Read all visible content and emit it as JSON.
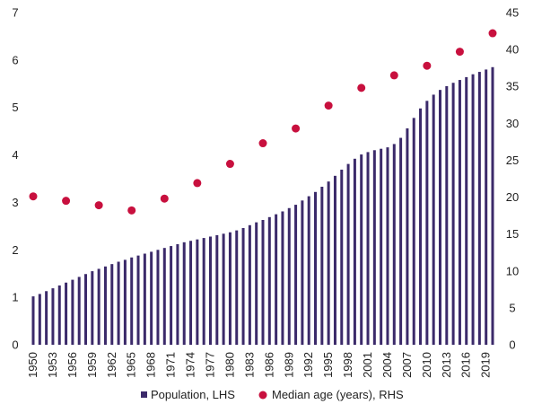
{
  "chart_data": {
    "type": "bar",
    "title": "",
    "xlabel": "",
    "ylabel": "",
    "y2label": "",
    "grid": false,
    "legend_position": "bottom",
    "colors": {
      "population": "#3b2a6a",
      "median_age": "#c8103e"
    },
    "x": [
      1950,
      1951,
      1952,
      1953,
      1954,
      1955,
      1956,
      1957,
      1958,
      1959,
      1960,
      1961,
      1962,
      1963,
      1964,
      1965,
      1966,
      1967,
      1968,
      1969,
      1970,
      1971,
      1972,
      1973,
      1974,
      1975,
      1976,
      1977,
      1978,
      1979,
      1980,
      1981,
      1982,
      1983,
      1984,
      1985,
      1986,
      1987,
      1988,
      1989,
      1990,
      1991,
      1992,
      1993,
      1994,
      1995,
      1996,
      1997,
      1998,
      1999,
      2000,
      2001,
      2002,
      2003,
      2004,
      2005,
      2006,
      2007,
      2008,
      2009,
      2010,
      2011,
      2012,
      2013,
      2014,
      2015,
      2016,
      2017,
      2018,
      2019,
      2020
    ],
    "x_tick_labels": [
      "1950",
      "1953",
      "1956",
      "1959",
      "1962",
      "1965",
      "1968",
      "1971",
      "1974",
      "1977",
      "1980",
      "1983",
      "1986",
      "1989",
      "1992",
      "1995",
      "1998",
      "2001",
      "2004",
      "2007",
      "2010",
      "2013",
      "2016",
      "2019"
    ],
    "y_ticks_left": [
      "0",
      "1",
      "2",
      "3",
      "4",
      "5",
      "6",
      "7"
    ],
    "y_ticks_right": [
      "0",
      "5",
      "10",
      "15",
      "20",
      "25",
      "30",
      "35",
      "40",
      "45"
    ],
    "ylim_left": [
      0,
      7
    ],
    "ylim_right": [
      0,
      45
    ],
    "series": [
      {
        "name": "Population, LHS",
        "type": "bar",
        "axis": "left",
        "values": [
          1.02,
          1.07,
          1.13,
          1.19,
          1.25,
          1.31,
          1.37,
          1.43,
          1.49,
          1.55,
          1.6,
          1.65,
          1.7,
          1.75,
          1.79,
          1.84,
          1.88,
          1.92,
          1.96,
          2.0,
          2.04,
          2.08,
          2.12,
          2.16,
          2.19,
          2.22,
          2.25,
          2.28,
          2.31,
          2.34,
          2.37,
          2.41,
          2.46,
          2.52,
          2.58,
          2.63,
          2.69,
          2.75,
          2.81,
          2.88,
          2.95,
          3.04,
          3.13,
          3.22,
          3.33,
          3.44,
          3.56,
          3.69,
          3.81,
          3.92,
          4.01,
          4.06,
          4.1,
          4.13,
          4.16,
          4.23,
          4.36,
          4.56,
          4.78,
          4.98,
          5.14,
          5.27,
          5.37,
          5.45,
          5.52,
          5.58,
          5.64,
          5.7,
          5.75,
          5.8,
          5.85
        ]
      },
      {
        "name": "Median age (years), RHS",
        "type": "scatter",
        "axis": "right",
        "x": [
          1950,
          1955,
          1960,
          1965,
          1970,
          1975,
          1980,
          1985,
          1990,
          1995,
          2000,
          2005,
          2010,
          2015,
          2020
        ],
        "values": [
          20.1,
          19.5,
          18.9,
          18.2,
          19.8,
          21.9,
          24.5,
          27.3,
          29.3,
          32.4,
          34.8,
          36.5,
          37.8,
          39.7,
          42.2
        ]
      }
    ]
  }
}
